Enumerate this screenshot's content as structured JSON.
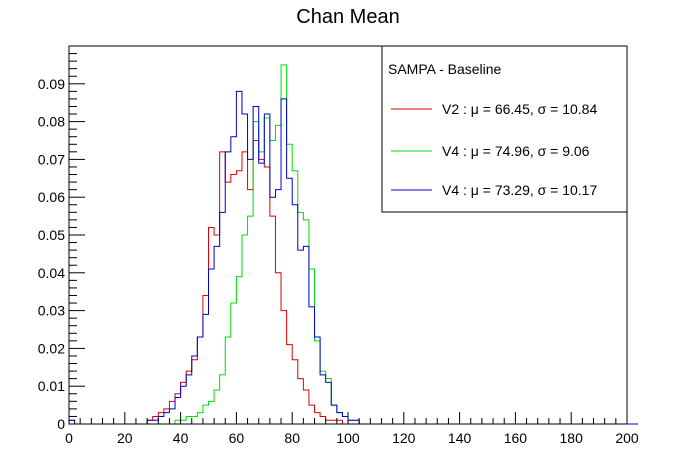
{
  "chart_data": {
    "type": "histogram",
    "title": "Chan Mean",
    "xlabel": "",
    "ylabel": "",
    "xlim": [
      0,
      200
    ],
    "ylim": [
      0,
      0.1
    ],
    "bin_width": 2,
    "bin_start": 0,
    "x_ticks": [
      "0",
      "20",
      "40",
      "60",
      "80",
      "100",
      "120",
      "140",
      "160",
      "180",
      "200"
    ],
    "y_ticks": [
      "0",
      "0.01",
      "0.02",
      "0.03",
      "0.04",
      "0.05",
      "0.06",
      "0.07",
      "0.08",
      "0.09"
    ],
    "y_tick_values": [
      0,
      0.01,
      0.02,
      0.03,
      0.04,
      0.05,
      0.06,
      0.07,
      0.08,
      0.09
    ],
    "x_tick_values": [
      0,
      20,
      40,
      60,
      80,
      100,
      120,
      140,
      160,
      180,
      200
    ],
    "grid": false,
    "legend": {
      "placement": "top-right",
      "header": "SAMPA - Baseline",
      "entries": [
        "V2 : μ = 66.45, σ = 10.84",
        "V4 : μ = 74.96, σ = 9.06",
        "V4 : μ = 73.29, σ = 10.17"
      ]
    },
    "series": [
      {
        "color": "#e00000",
        "values": [
          0.001,
          0,
          0,
          0,
          0,
          0,
          0,
          0,
          0,
          0,
          0,
          0,
          0,
          0,
          0.001,
          0.002,
          0.003,
          0.004,
          0.006,
          0.008,
          0.011,
          0.014,
          0.017,
          0.023,
          0.034,
          0.052,
          0.05,
          0.072,
          0.064,
          0.066,
          0.067,
          0.072,
          0.062,
          0.075,
          0.07,
          0.068,
          0.055,
          0.04,
          0.03,
          0.021,
          0.017,
          0.012,
          0.009,
          0.005,
          0.003,
          0.002,
          0.001,
          0.001,
          0.001,
          0,
          0,
          0,
          0,
          0,
          0,
          0,
          0,
          0,
          0,
          0,
          0,
          0,
          0,
          0,
          0,
          0,
          0,
          0,
          0,
          0,
          0,
          0,
          0,
          0,
          0,
          0,
          0,
          0,
          0,
          0,
          0,
          0,
          0,
          0,
          0,
          0,
          0,
          0,
          0,
          0,
          0,
          0,
          0,
          0,
          0,
          0,
          0,
          0,
          0,
          0
        ]
      },
      {
        "color": "#00dd00",
        "values": [
          0.001,
          0,
          0,
          0,
          0,
          0,
          0,
          0,
          0,
          0,
          0,
          0,
          0,
          0,
          0,
          0,
          0,
          0,
          0,
          0.001,
          0.001,
          0.002,
          0.002,
          0.003,
          0.005,
          0.006,
          0.009,
          0.013,
          0.023,
          0.032,
          0.039,
          0.05,
          0.055,
          0.08,
          0.072,
          0.081,
          0.075,
          0.079,
          0.095,
          0.074,
          0.067,
          0.056,
          0.054,
          0.041,
          0.022,
          0.014,
          0.012,
          0.005,
          0.003,
          0.002,
          0.001,
          0.001,
          0,
          0,
          0,
          0,
          0,
          0,
          0,
          0,
          0,
          0,
          0,
          0,
          0,
          0,
          0,
          0,
          0,
          0,
          0,
          0,
          0,
          0,
          0,
          0,
          0,
          0,
          0,
          0,
          0,
          0,
          0,
          0,
          0,
          0,
          0,
          0,
          0,
          0,
          0,
          0,
          0,
          0,
          0,
          0,
          0,
          0,
          0,
          0,
          0,
          0
        ]
      },
      {
        "color": "#0000cc",
        "values": [
          0.001,
          0,
          0,
          0,
          0,
          0,
          0,
          0,
          0,
          0,
          0,
          0,
          0,
          0,
          0.001,
          0.001,
          0.002,
          0.003,
          0.004,
          0.007,
          0.01,
          0.013,
          0.018,
          0.023,
          0.029,
          0.041,
          0.047,
          0.056,
          0.072,
          0.076,
          0.088,
          0.082,
          0.07,
          0.084,
          0.069,
          0.082,
          0.06,
          0.062,
          0.086,
          0.065,
          0.058,
          0.046,
          0.047,
          0.031,
          0.023,
          0.013,
          0.011,
          0.005,
          0.003,
          0.002,
          0.001,
          0.001,
          0,
          0,
          0,
          0,
          0,
          0,
          0,
          0,
          0,
          0,
          0,
          0,
          0,
          0,
          0,
          0,
          0,
          0,
          0,
          0,
          0,
          0,
          0,
          0,
          0,
          0,
          0,
          0,
          0,
          0,
          0,
          0,
          0,
          0,
          0,
          0,
          0,
          0,
          0,
          0,
          0,
          0,
          0,
          0,
          0,
          0,
          0,
          0,
          0,
          0
        ]
      }
    ]
  }
}
